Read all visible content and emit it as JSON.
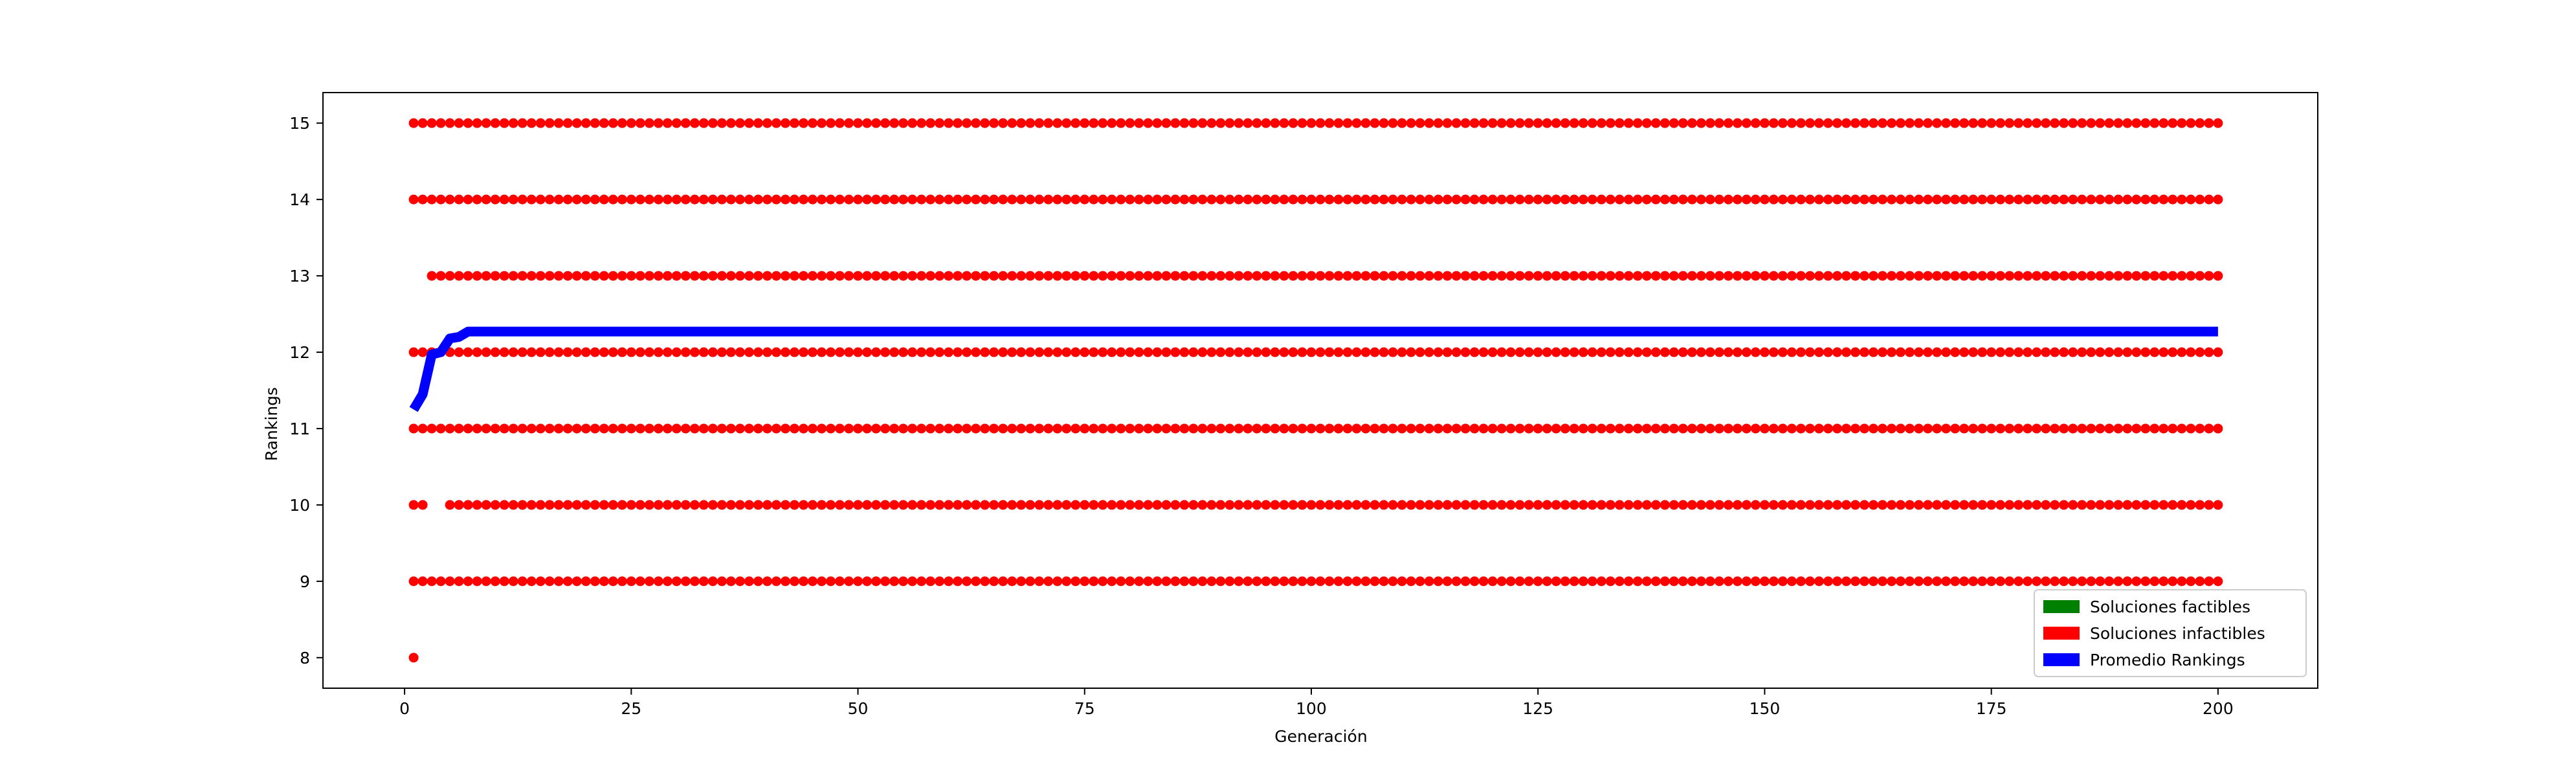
{
  "chart_data": {
    "type": "scatter",
    "title": "",
    "xlabel": "Generación",
    "ylabel": "Rankings",
    "xlim": [
      -9,
      211
    ],
    "ylim": [
      7.6,
      15.4
    ],
    "xticks": [
      0,
      25,
      50,
      75,
      100,
      125,
      150,
      175,
      200
    ],
    "yticks": [
      8,
      9,
      10,
      11,
      12,
      13,
      14,
      15
    ],
    "grid": false,
    "legend_placement": "lower-right",
    "legend": [
      {
        "label": "Soluciones factibles",
        "color": "#008000"
      },
      {
        "label": "Soluciones infactibles",
        "color": "#ff0000"
      },
      {
        "label": "Promedio Rankings",
        "color": "#0000ff"
      }
    ],
    "series": [
      {
        "name": "Soluciones factibles",
        "color": "#008000",
        "points": []
      },
      {
        "name": "Soluciones infactibles",
        "color": "#ff0000",
        "generations": [
          1,
          200
        ],
        "rank_levels": [
          {
            "y": 15,
            "x_start": 1,
            "x_end": 200
          },
          {
            "y": 14,
            "x_start": 1,
            "x_end": 200
          },
          {
            "y": 13,
            "x_start": 3,
            "x_end": 200
          },
          {
            "y": 12,
            "x_start": 1,
            "x_end": 200
          },
          {
            "y": 11,
            "x_start": 1,
            "x_end": 200
          },
          {
            "y": 10,
            "x_start": 5,
            "x_end": 200,
            "extra_x": [
              1,
              2
            ]
          },
          {
            "y": 9,
            "x_start": 1,
            "x_end": 200
          },
          {
            "y": 8,
            "x_start": 1,
            "x_end": 1
          }
        ]
      },
      {
        "name": "Promedio Rankings",
        "color": "#0000ff",
        "x": [
          1,
          2,
          3,
          4,
          5,
          6,
          7,
          200
        ],
        "y": [
          11.25,
          11.45,
          11.97,
          12.0,
          12.18,
          12.2,
          12.27,
          12.27
        ]
      }
    ]
  }
}
